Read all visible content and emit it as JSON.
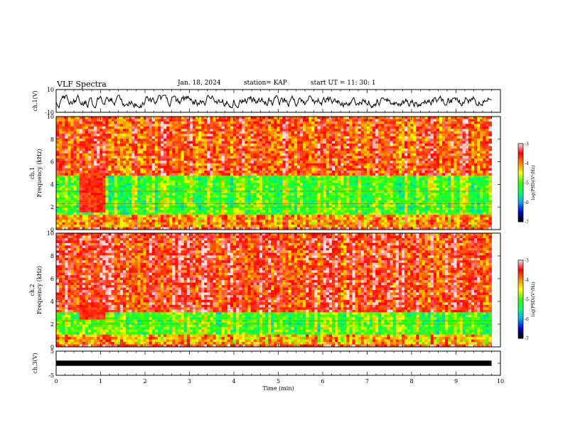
{
  "header": {
    "title": "VLF Spectra",
    "date": "Jan. 18, 2024",
    "station": "station= KAP",
    "start": "start UT =   11: 30: 1"
  },
  "colors": {
    "signal": "#000000",
    "colormap": [
      "#000000",
      "#0000cc",
      "#00aaff",
      "#00ff66",
      "#33ff00",
      "#ffff00",
      "#ff8800",
      "#ff0000",
      "#ffdddd"
    ]
  },
  "chart_data": [
    {
      "type": "line",
      "name": "ch1-waveform",
      "ylabel": "ch.1(V)",
      "ylim": [
        -10,
        10
      ],
      "yticks": [
        "10",
        "-10"
      ],
      "x_range_min": [
        0,
        10
      ],
      "data_extent_min": [
        0,
        9.8
      ],
      "signal_mean_v": 0,
      "signal_range_v": [
        -6,
        5
      ]
    },
    {
      "type": "heatmap",
      "name": "ch1-spectrogram",
      "ylabel": "ch.1\nFrequency (kHz)",
      "ylim": [
        0,
        10
      ],
      "yticks": [
        "0",
        "2",
        "4",
        "6",
        "8",
        "10"
      ],
      "x_range_min": [
        0,
        10
      ],
      "data_extent_min": [
        0,
        9.8
      ],
      "colorbar": {
        "label": "log(PSD)(V²/Hz)",
        "range": [
          -7,
          -3
        ],
        "ticks": [
          "-3",
          "-4",
          "-5",
          "-6",
          "-7"
        ]
      },
      "bands": [
        {
          "freq_khz": [
            0,
            0.3
          ],
          "log_psd": -3.5
        },
        {
          "freq_khz": [
            0.3,
            1.2
          ],
          "log_psd": -4.0
        },
        {
          "freq_khz": [
            1.2,
            4.8
          ],
          "log_psd": -5.0
        },
        {
          "freq_khz": [
            4.8,
            10
          ],
          "log_psd": -3.7
        }
      ],
      "features": [
        {
          "type": "broadband burst",
          "time_min": [
            0.5,
            1.1
          ],
          "freq_khz": [
            1.5,
            5
          ],
          "log_psd": -3.6
        }
      ]
    },
    {
      "type": "heatmap",
      "name": "ch2-spectrogram",
      "ylabel": "ch.2\nFrequency (kHz)",
      "ylim": [
        0,
        10
      ],
      "yticks": [
        "0",
        "2",
        "4",
        "6",
        "8",
        "10"
      ],
      "x_range_min": [
        0,
        10
      ],
      "data_extent_min": [
        0,
        9.8
      ],
      "colorbar": {
        "label": "log(PSD)(V²/Hz)",
        "range": [
          -7,
          -3
        ],
        "ticks": [
          "-3",
          "-4",
          "-5",
          "-6",
          "-7"
        ]
      },
      "bands": [
        {
          "freq_khz": [
            0,
            0.3
          ],
          "log_psd": -3.5
        },
        {
          "freq_khz": [
            0.3,
            1.0
          ],
          "log_psd": -4.2
        },
        {
          "freq_khz": [
            1.0,
            3.0
          ],
          "log_psd": -5.0
        },
        {
          "freq_khz": [
            3.0,
            10
          ],
          "log_psd": -3.6
        }
      ],
      "features": [
        {
          "type": "broadband burst",
          "time_min": [
            0.5,
            1.1
          ],
          "freq_khz": [
            2.5,
            4
          ],
          "log_psd": -3.6
        }
      ]
    },
    {
      "type": "line",
      "name": "ch3-waveform",
      "ylabel": "ch.3(V)",
      "xlabel": "Time (min)",
      "ylim": [
        -5,
        5
      ],
      "yticks": [
        "5",
        "0",
        "-5"
      ],
      "x_range_min": [
        0,
        10
      ],
      "xticks": [
        "0",
        "1",
        "2",
        "3",
        "4",
        "5",
        "6",
        "7",
        "8",
        "9",
        "10"
      ],
      "data_extent_min": [
        0,
        9.8
      ],
      "signal_level_v": [
        -0.5,
        0.5
      ]
    }
  ]
}
